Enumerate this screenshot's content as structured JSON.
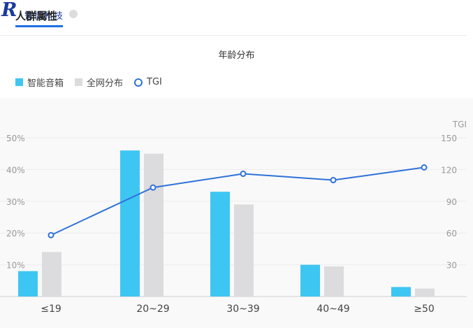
{
  "logo": {
    "mark": "R",
    "brand": "智博科技"
  },
  "tab": {
    "label": "人群属性"
  },
  "chart_data": {
    "type": "bar",
    "title": "年龄分布",
    "categories": [
      "≤19",
      "20~29",
      "30~39",
      "40~49",
      "≥50"
    ],
    "series": [
      {
        "name": "智能音箱",
        "kind": "bar",
        "axis": "left",
        "color": "#3ec6f2",
        "values": [
          8,
          46,
          33,
          10,
          3
        ]
      },
      {
        "name": "全网分布",
        "kind": "bar",
        "axis": "left",
        "color": "#dcdbdd",
        "values": [
          14,
          45,
          29,
          9.5,
          2.5
        ]
      },
      {
        "name": "TGI",
        "kind": "line",
        "axis": "right",
        "color": "#2f72d8",
        "values": [
          58,
          103,
          116,
          110,
          122
        ]
      }
    ],
    "left_axis": {
      "ticks": [
        "10%",
        "20%",
        "30%",
        "40%",
        "50%"
      ],
      "ylim": [
        0,
        50
      ]
    },
    "right_axis": {
      "label": "TGI",
      "ticks": [
        "30",
        "60",
        "90",
        "120",
        "150"
      ],
      "ylim": [
        0,
        150
      ]
    },
    "legend_position": "top-left",
    "grid": true
  }
}
